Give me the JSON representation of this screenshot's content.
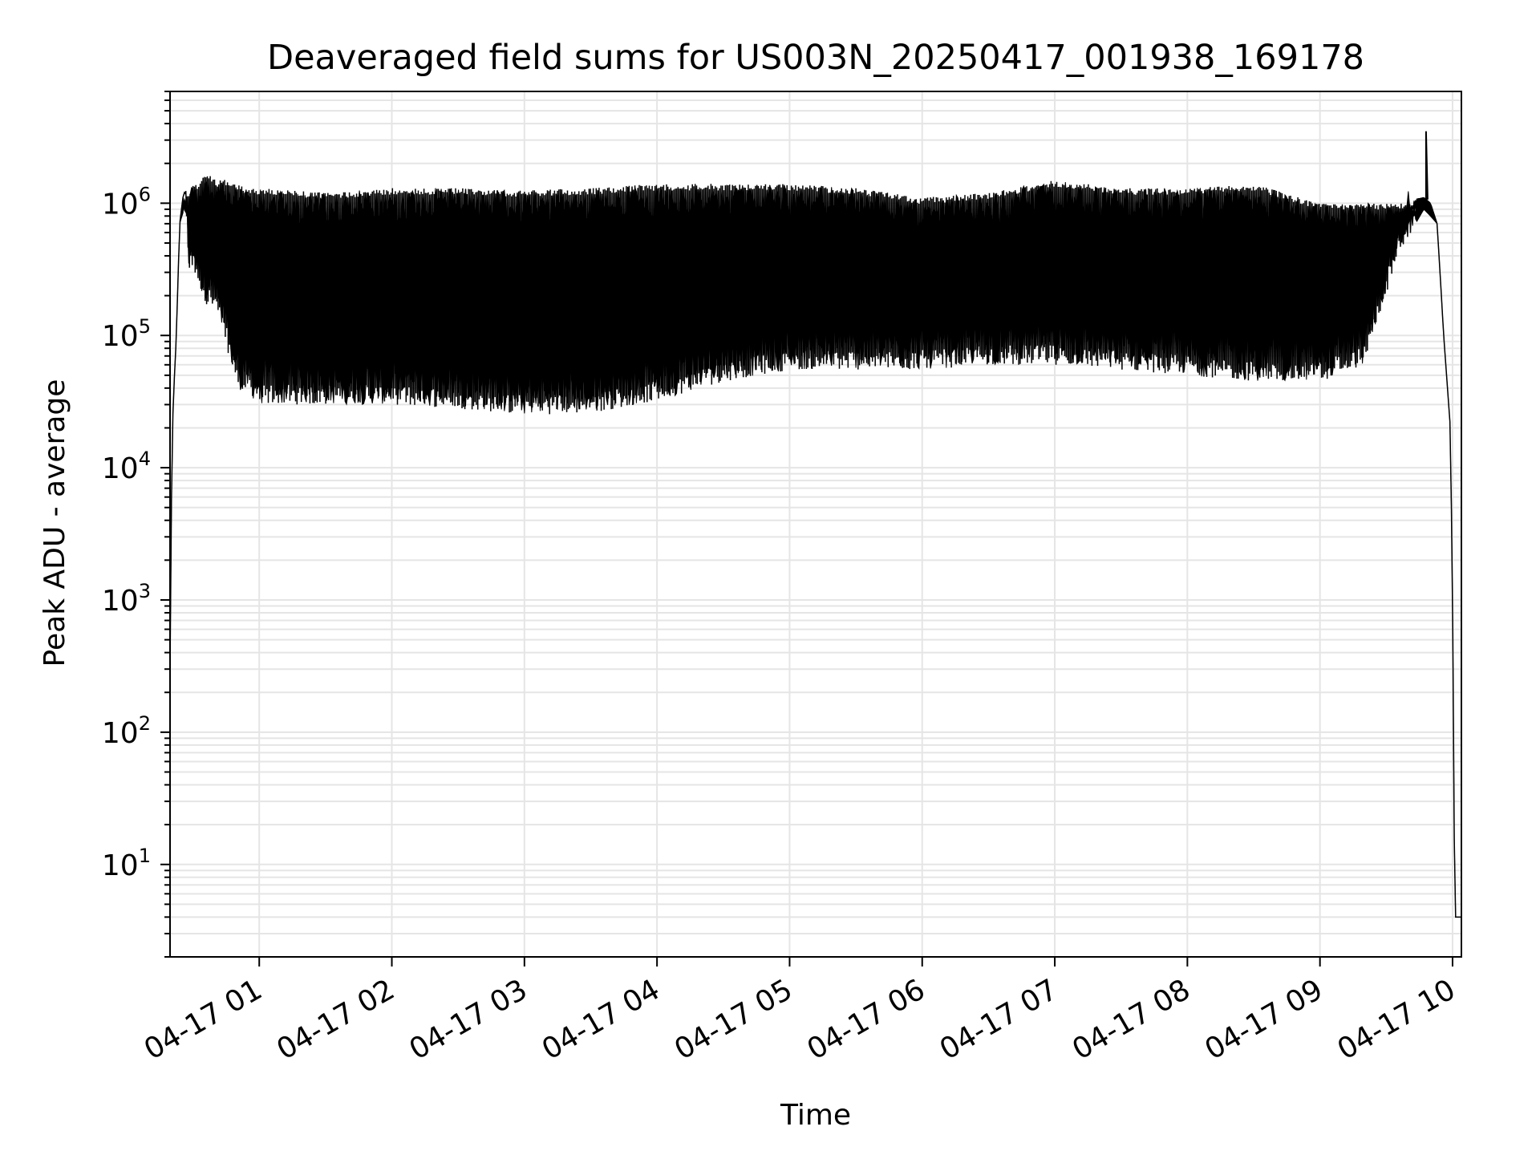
{
  "chart_data": {
    "type": "line",
    "title": "Deaveraged field sums for US003N_20250417_001938_169178",
    "xlabel": "Time",
    "ylabel": "Peak ADU - average",
    "x_scale": "time",
    "y_scale": "log",
    "xlim": [
      "2025-04-17 00:19:38",
      "2025-04-17 10:04:00"
    ],
    "ylim": [
      2,
      7000000
    ],
    "x_ticks": [
      {
        "value": "2025-04-17 01:00",
        "label": "04-17 01"
      },
      {
        "value": "2025-04-17 02:00",
        "label": "04-17 02"
      },
      {
        "value": "2025-04-17 03:00",
        "label": "04-17 03"
      },
      {
        "value": "2025-04-17 04:00",
        "label": "04-17 04"
      },
      {
        "value": "2025-04-17 05:00",
        "label": "04-17 05"
      },
      {
        "value": "2025-04-17 06:00",
        "label": "04-17 06"
      },
      {
        "value": "2025-04-17 07:00",
        "label": "04-17 07"
      },
      {
        "value": "2025-04-17 08:00",
        "label": "04-17 08"
      },
      {
        "value": "2025-04-17 09:00",
        "label": "04-17 09"
      },
      {
        "value": "2025-04-17 10:00",
        "label": "04-17 10"
      }
    ],
    "y_ticks": [
      {
        "value": 10,
        "base": "10",
        "exp": "1"
      },
      {
        "value": 100,
        "base": "10",
        "exp": "2"
      },
      {
        "value": 1000,
        "base": "10",
        "exp": "3"
      },
      {
        "value": 10000,
        "base": "10",
        "exp": "4"
      },
      {
        "value": 100000,
        "base": "10",
        "exp": "5"
      },
      {
        "value": 1000000,
        "base": "10",
        "exp": "6"
      }
    ],
    "grid": true,
    "legend": "none",
    "line_color": "#000000",
    "grid_color": "#e5e5e5",
    "series": [
      {
        "name": "",
        "description_values": {
          "x": [
            "2025-04-17 00:19:38",
            "2025-04-17 00:20:00",
            "2025-04-17 00:21:00",
            "2025-04-17 00:22:30",
            "2025-04-17 00:24:00",
            "2025-04-17 00:26:00",
            "2025-04-17 00:28:00",
            "2025-04-17 00:30:00",
            "2025-04-17 00:32:00",
            "2025-04-17 00:34:00",
            "2025-04-17 00:36:00",
            "2025-04-17 00:40:00",
            "2025-04-17 00:45:00",
            "2025-04-17 00:50:00",
            "2025-04-17 00:55:00",
            "2025-04-17 01:00:00",
            "2025-04-17 01:30:00",
            "2025-04-17 02:00:00",
            "2025-04-17 02:30:00",
            "2025-04-17 03:00:00",
            "2025-04-17 03:30:00",
            "2025-04-17 04:00:00",
            "2025-04-17 04:30:00",
            "2025-04-17 05:00:00",
            "2025-04-17 05:30:00",
            "2025-04-17 06:00:00",
            "2025-04-17 06:30:00",
            "2025-04-17 07:00:00",
            "2025-04-17 07:30:00",
            "2025-04-17 08:00:00",
            "2025-04-17 08:30:00",
            "2025-04-17 09:00:00",
            "2025-04-17 09:20:00",
            "2025-04-17 09:35:00",
            "2025-04-17 09:47:00",
            "2025-04-17 09:50:00",
            "2025-04-17 09:53:00",
            "2025-04-17 09:56:00",
            "2025-04-17 09:59:00",
            "2025-04-17 10:00:00",
            "2025-04-17 10:01:00",
            "2025-04-17 10:04:00"
          ],
          "upper": [
            300,
            3000,
            30000,
            100000,
            700000,
            1300000,
            1200000,
            1500000,
            1400000,
            1600000,
            1700000,
            1500000,
            1500000,
            1400000,
            1300000,
            1300000,
            1200000,
            1300000,
            1300000,
            1250000,
            1300000,
            1400000,
            1400000,
            1400000,
            1300000,
            1100000,
            1200000,
            1500000,
            1300000,
            1300000,
            1400000,
            1000000,
            1000000,
            1000000,
            1100000,
            1000000,
            700000,
            100000,
            20000,
            1000,
            4,
            4
          ],
          "lower": [
            300,
            3000,
            30000,
            100000,
            700000,
            900000,
            300000,
            300000,
            250000,
            200000,
            170000,
            150000,
            80000,
            40000,
            35000,
            30000,
            30000,
            30000,
            28000,
            25000,
            26000,
            32000,
            45000,
            55000,
            55000,
            55000,
            60000,
            60000,
            55000,
            50000,
            45000,
            45000,
            60000,
            400000,
            900000,
            800000,
            700000,
            100000,
            20000,
            1000,
            4,
            4
          ],
          "spike": {
            "x": "2025-04-17 09:48:00",
            "y": 3500000
          }
        }
      }
    ]
  }
}
